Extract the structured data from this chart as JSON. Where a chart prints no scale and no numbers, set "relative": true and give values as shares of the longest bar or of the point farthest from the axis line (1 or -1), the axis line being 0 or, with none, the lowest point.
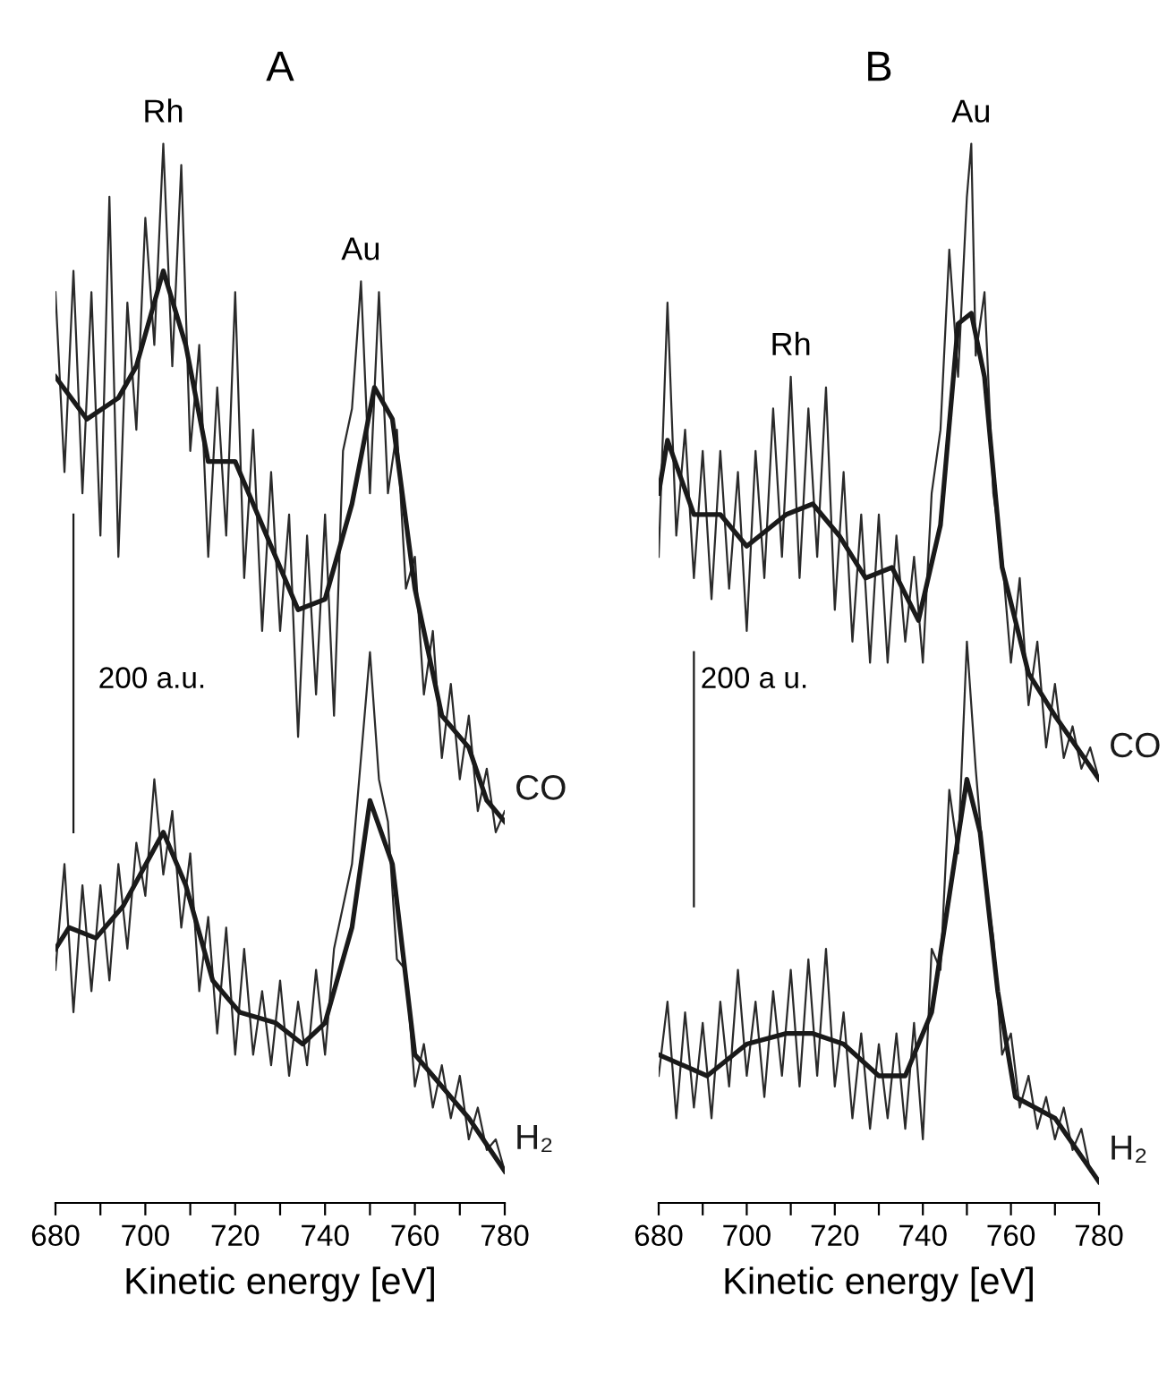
{
  "chart_data": [
    {
      "type": "line",
      "title": "A",
      "xlabel": "Kinetic energy [eV]",
      "relative": true,
      "tick_labels": "x",
      "grid": false,
      "legend": false,
      "xlim": [
        680,
        780
      ],
      "xticks": [
        680,
        {
          "value": 690,
          "label": null
        },
        700,
        {
          "value": 710,
          "label": null
        },
        720,
        {
          "value": 730,
          "label": null
        },
        740,
        {
          "value": 750,
          "label": null
        },
        760,
        {
          "value": 770,
          "label": null
        },
        780
      ],
      "annotations": [
        {
          "text": "Rh",
          "x": 704,
          "y": 1.0
        },
        {
          "text": "Au",
          "x": 748,
          "y": 0.87
        },
        "200 a.u."
      ],
      "series": [
        {
          "color": "#2a2a2a",
          "x": [
            680,
            682,
            684,
            686,
            688,
            690,
            692,
            694,
            696,
            698,
            700,
            702,
            704,
            706,
            708,
            710,
            712,
            714,
            716,
            718,
            720,
            722,
            724,
            726,
            728,
            730,
            732,
            734,
            736,
            738,
            740,
            742,
            744,
            746,
            748,
            750,
            752,
            754,
            756,
            758,
            760,
            762,
            764,
            766,
            768,
            770,
            772,
            774,
            776,
            778,
            780
          ],
          "values": [
            0.86,
            0.69,
            0.88,
            0.67,
            0.86,
            0.63,
            0.95,
            0.61,
            0.85,
            0.73,
            0.93,
            0.81,
            1.0,
            0.79,
            0.98,
            0.71,
            0.81,
            0.61,
            0.77,
            0.63,
            0.86,
            0.59,
            0.73,
            0.54,
            0.69,
            0.54,
            0.65,
            0.44,
            0.63,
            0.48,
            0.65,
            0.46,
            0.71,
            0.75,
            0.87,
            0.67,
            0.86,
            0.67,
            0.73,
            0.58,
            0.61,
            0.48,
            0.54,
            0.42,
            0.49,
            0.4,
            0.46,
            0.37,
            0.41,
            0.35,
            0.37
          ]
        },
        {
          "name": "CO",
          "color": "#1a1a1a",
          "x": [
            680,
            687,
            694,
            698,
            704,
            709,
            714,
            720,
            727,
            734,
            740,
            746,
            751,
            755,
            760,
            766,
            772,
            776,
            780
          ],
          "values": [
            0.78,
            0.74,
            0.76,
            0.79,
            0.88,
            0.81,
            0.7,
            0.7,
            0.63,
            0.56,
            0.57,
            0.66,
            0.77,
            0.74,
            0.58,
            0.46,
            0.43,
            0.38,
            0.36
          ]
        },
        {
          "color": "#2a2a2a",
          "x": [
            680,
            682,
            684,
            686,
            688,
            690,
            692,
            694,
            696,
            698,
            700,
            702,
            704,
            706,
            708,
            710,
            712,
            714,
            716,
            718,
            720,
            722,
            724,
            726,
            728,
            730,
            732,
            734,
            736,
            738,
            740,
            742,
            744,
            746,
            748,
            750,
            752,
            754,
            756,
            758,
            760,
            762,
            764,
            766,
            768,
            770,
            772,
            774,
            776,
            778,
            780
          ],
          "values": [
            0.22,
            0.32,
            0.18,
            0.3,
            0.2,
            0.3,
            0.21,
            0.32,
            0.24,
            0.34,
            0.29,
            0.4,
            0.31,
            0.37,
            0.26,
            0.33,
            0.2,
            0.27,
            0.16,
            0.26,
            0.14,
            0.24,
            0.14,
            0.2,
            0.13,
            0.21,
            0.12,
            0.19,
            0.13,
            0.22,
            0.14,
            0.24,
            0.28,
            0.32,
            0.42,
            0.52,
            0.4,
            0.36,
            0.23,
            0.22,
            0.11,
            0.15,
            0.09,
            0.13,
            0.08,
            0.12,
            0.06,
            0.09,
            0.05,
            0.06,
            0.03
          ]
        },
        {
          "name": "H₂",
          "color": "#1a1a1a",
          "x": [
            680,
            683,
            689,
            695,
            704,
            709,
            715,
            721,
            729,
            735,
            740,
            746,
            750,
            755,
            760,
            766,
            772,
            780
          ],
          "values": [
            0.24,
            0.26,
            0.25,
            0.28,
            0.35,
            0.3,
            0.21,
            0.18,
            0.17,
            0.15,
            0.17,
            0.26,
            0.38,
            0.32,
            0.14,
            0.11,
            0.08,
            0.03
          ]
        },
        {
          "color": "#1a1a1a",
          "x": [
            684,
            684
          ],
          "values": [
            0.35,
            0.65
          ]
        }
      ]
    },
    {
      "type": "line",
      "title": "B",
      "xlabel": "Kinetic energy [eV]",
      "relative": true,
      "tick_labels": "x",
      "grid": false,
      "legend": false,
      "xlim": [
        680,
        780
      ],
      "xticks": [
        680,
        {
          "value": 690,
          "label": null
        },
        700,
        {
          "value": 710,
          "label": null
        },
        720,
        {
          "value": 730,
          "label": null
        },
        740,
        {
          "value": 750,
          "label": null
        },
        760,
        {
          "value": 770,
          "label": null
        },
        780
      ],
      "annotations": [
        {
          "text": "Rh",
          "x": 710,
          "y": 0.78
        },
        {
          "text": "Au",
          "x": 751,
          "y": 1.0
        },
        "200 a u."
      ],
      "series": [
        {
          "color": "#2a2a2a",
          "x": [
            680,
            682,
            684,
            686,
            688,
            690,
            692,
            694,
            696,
            698,
            700,
            702,
            704,
            706,
            708,
            710,
            712,
            714,
            716,
            718,
            720,
            722,
            724,
            726,
            728,
            730,
            732,
            734,
            736,
            738,
            740,
            742,
            744,
            746,
            748,
            750,
            751,
            752,
            754,
            756,
            758,
            760,
            762,
            764,
            766,
            768,
            770,
            772,
            774,
            776,
            778,
            780
          ],
          "values": [
            0.61,
            0.85,
            0.63,
            0.73,
            0.59,
            0.71,
            0.57,
            0.71,
            0.58,
            0.69,
            0.54,
            0.71,
            0.59,
            0.75,
            0.61,
            0.78,
            0.59,
            0.75,
            0.61,
            0.77,
            0.56,
            0.69,
            0.53,
            0.65,
            0.51,
            0.65,
            0.51,
            0.63,
            0.53,
            0.61,
            0.51,
            0.67,
            0.73,
            0.9,
            0.78,
            0.95,
            1.0,
            0.8,
            0.86,
            0.67,
            0.61,
            0.51,
            0.59,
            0.47,
            0.53,
            0.43,
            0.49,
            0.42,
            0.45,
            0.41,
            0.43,
            0.4
          ]
        },
        {
          "name": "CO",
          "color": "#1a1a1a",
          "x": [
            680,
            682,
            688,
            694,
            700,
            709,
            715,
            721,
            727,
            733,
            739,
            744,
            748,
            751,
            754,
            758,
            764,
            770,
            780
          ],
          "values": [
            0.67,
            0.72,
            0.65,
            0.65,
            0.62,
            0.65,
            0.66,
            0.63,
            0.59,
            0.6,
            0.55,
            0.64,
            0.83,
            0.84,
            0.78,
            0.6,
            0.5,
            0.46,
            0.4
          ]
        },
        {
          "color": "#2a2a2a",
          "x": [
            680,
            682,
            684,
            686,
            688,
            690,
            692,
            694,
            696,
            698,
            700,
            702,
            704,
            706,
            708,
            710,
            712,
            714,
            716,
            718,
            720,
            722,
            724,
            726,
            728,
            730,
            732,
            734,
            736,
            738,
            740,
            742,
            744,
            746,
            748,
            750,
            752,
            754,
            756,
            758,
            760,
            762,
            764,
            766,
            768,
            770,
            772,
            774,
            776,
            778,
            780
          ],
          "values": [
            0.12,
            0.19,
            0.08,
            0.18,
            0.09,
            0.17,
            0.08,
            0.19,
            0.11,
            0.22,
            0.12,
            0.19,
            0.1,
            0.2,
            0.12,
            0.22,
            0.11,
            0.23,
            0.12,
            0.24,
            0.11,
            0.18,
            0.08,
            0.16,
            0.07,
            0.15,
            0.08,
            0.16,
            0.07,
            0.17,
            0.06,
            0.24,
            0.22,
            0.39,
            0.33,
            0.53,
            0.41,
            0.31,
            0.25,
            0.14,
            0.16,
            0.09,
            0.12,
            0.07,
            0.1,
            0.06,
            0.09,
            0.05,
            0.07,
            0.03,
            0.02
          ]
        },
        {
          "name": "H₂",
          "color": "#1a1a1a",
          "x": [
            680,
            691,
            700,
            709,
            715,
            722,
            730,
            736,
            742,
            746,
            750,
            753,
            757,
            761,
            770,
            780
          ],
          "values": [
            0.14,
            0.12,
            0.15,
            0.16,
            0.16,
            0.15,
            0.12,
            0.12,
            0.18,
            0.29,
            0.4,
            0.35,
            0.2,
            0.1,
            0.08,
            0.02
          ]
        },
        {
          "color": "#1a1a1a",
          "x": [
            688,
            688
          ],
          "values": [
            0.28,
            0.52
          ]
        }
      ]
    }
  ]
}
